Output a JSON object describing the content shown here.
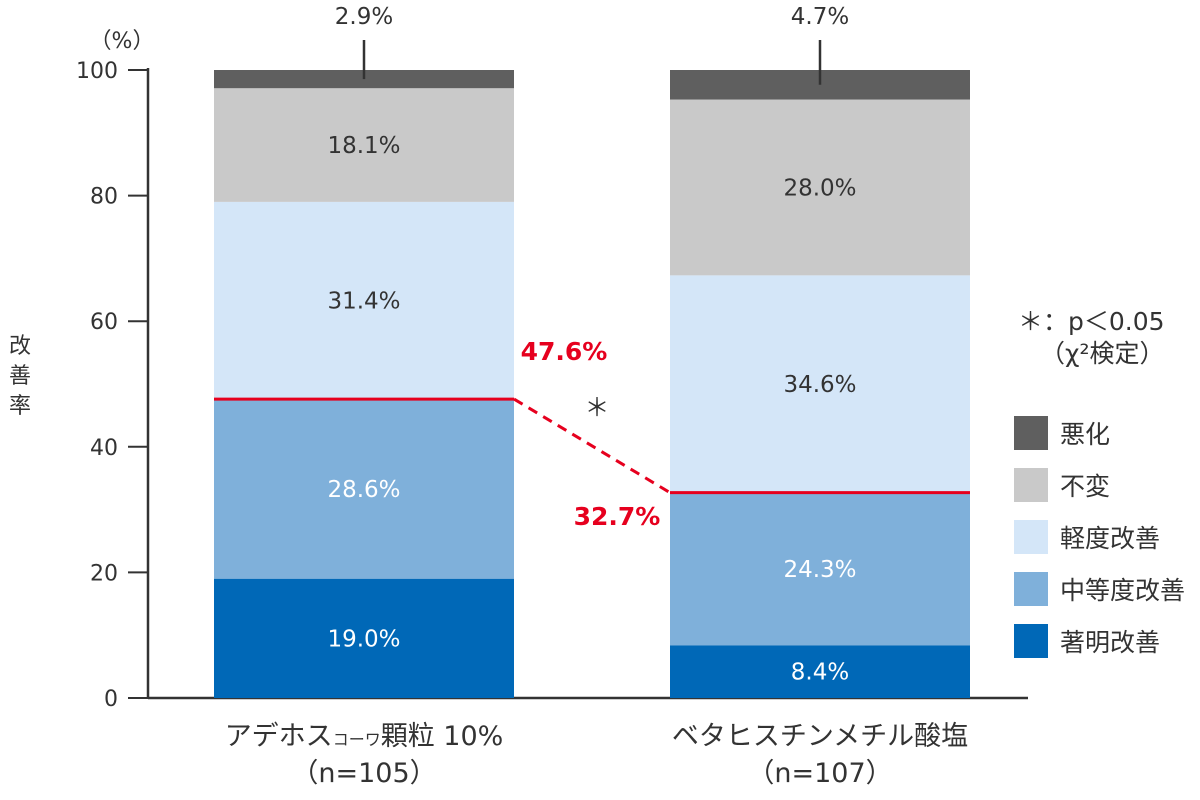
{
  "chart_data": {
    "type": "bar",
    "stacked": true,
    "y_unit_label": "（%）",
    "ylabel": "改善率",
    "ylim": [
      0,
      100
    ],
    "yticks": [
      0,
      20,
      40,
      60,
      80,
      100
    ],
    "categories": [
      {
        "name_main": "アデホス",
        "name_sub": "コーワ",
        "name_tail": "顆粒 10%",
        "n_label": "（n=105）"
      },
      {
        "name_main": "ベタヒスチンメチル酸塩",
        "name_sub": "",
        "name_tail": "",
        "n_label": "（n=107）"
      }
    ],
    "series": [
      {
        "name": "著明改善",
        "color": "#0068b7",
        "label_color": "light",
        "values": [
          19.0,
          8.4
        ],
        "labels": [
          "19.0%",
          "8.4%"
        ]
      },
      {
        "name": "中等度改善",
        "color": "#7fb0da",
        "label_color": "light",
        "values": [
          28.6,
          24.3
        ],
        "labels": [
          "28.6%",
          "24.3%"
        ]
      },
      {
        "name": "軽度改善",
        "color": "#d4e6f8",
        "label_color": "dark",
        "values": [
          31.4,
          34.6
        ],
        "labels": [
          "31.4%",
          "34.6%"
        ]
      },
      {
        "name": "不変",
        "color": "#c9c9c9",
        "label_color": "dark",
        "values": [
          18.1,
          28.0
        ],
        "labels": [
          "18.1%",
          "28.0%"
        ]
      },
      {
        "name": "悪化",
        "color": "#5f5f5f",
        "label_color": "dark",
        "values": [
          2.9,
          4.7
        ],
        "labels": [
          "2.9%",
          "4.7%"
        ]
      }
    ],
    "improvement_rates": [
      {
        "value": 47.6,
        "label": "47.6%"
      },
      {
        "value": 32.7,
        "label": "32.7%"
      }
    ],
    "significance_marker": "＊",
    "note_line1": "＊：p＜0.05",
    "note_line2": "（χ²検定）",
    "legend_order": [
      "悪化",
      "不変",
      "軽度改善",
      "中等度改善",
      "著明改善"
    ],
    "legend_position": "right",
    "grid": false,
    "colors": {
      "accent": "#e6001e",
      "axis": "#333333"
    }
  }
}
